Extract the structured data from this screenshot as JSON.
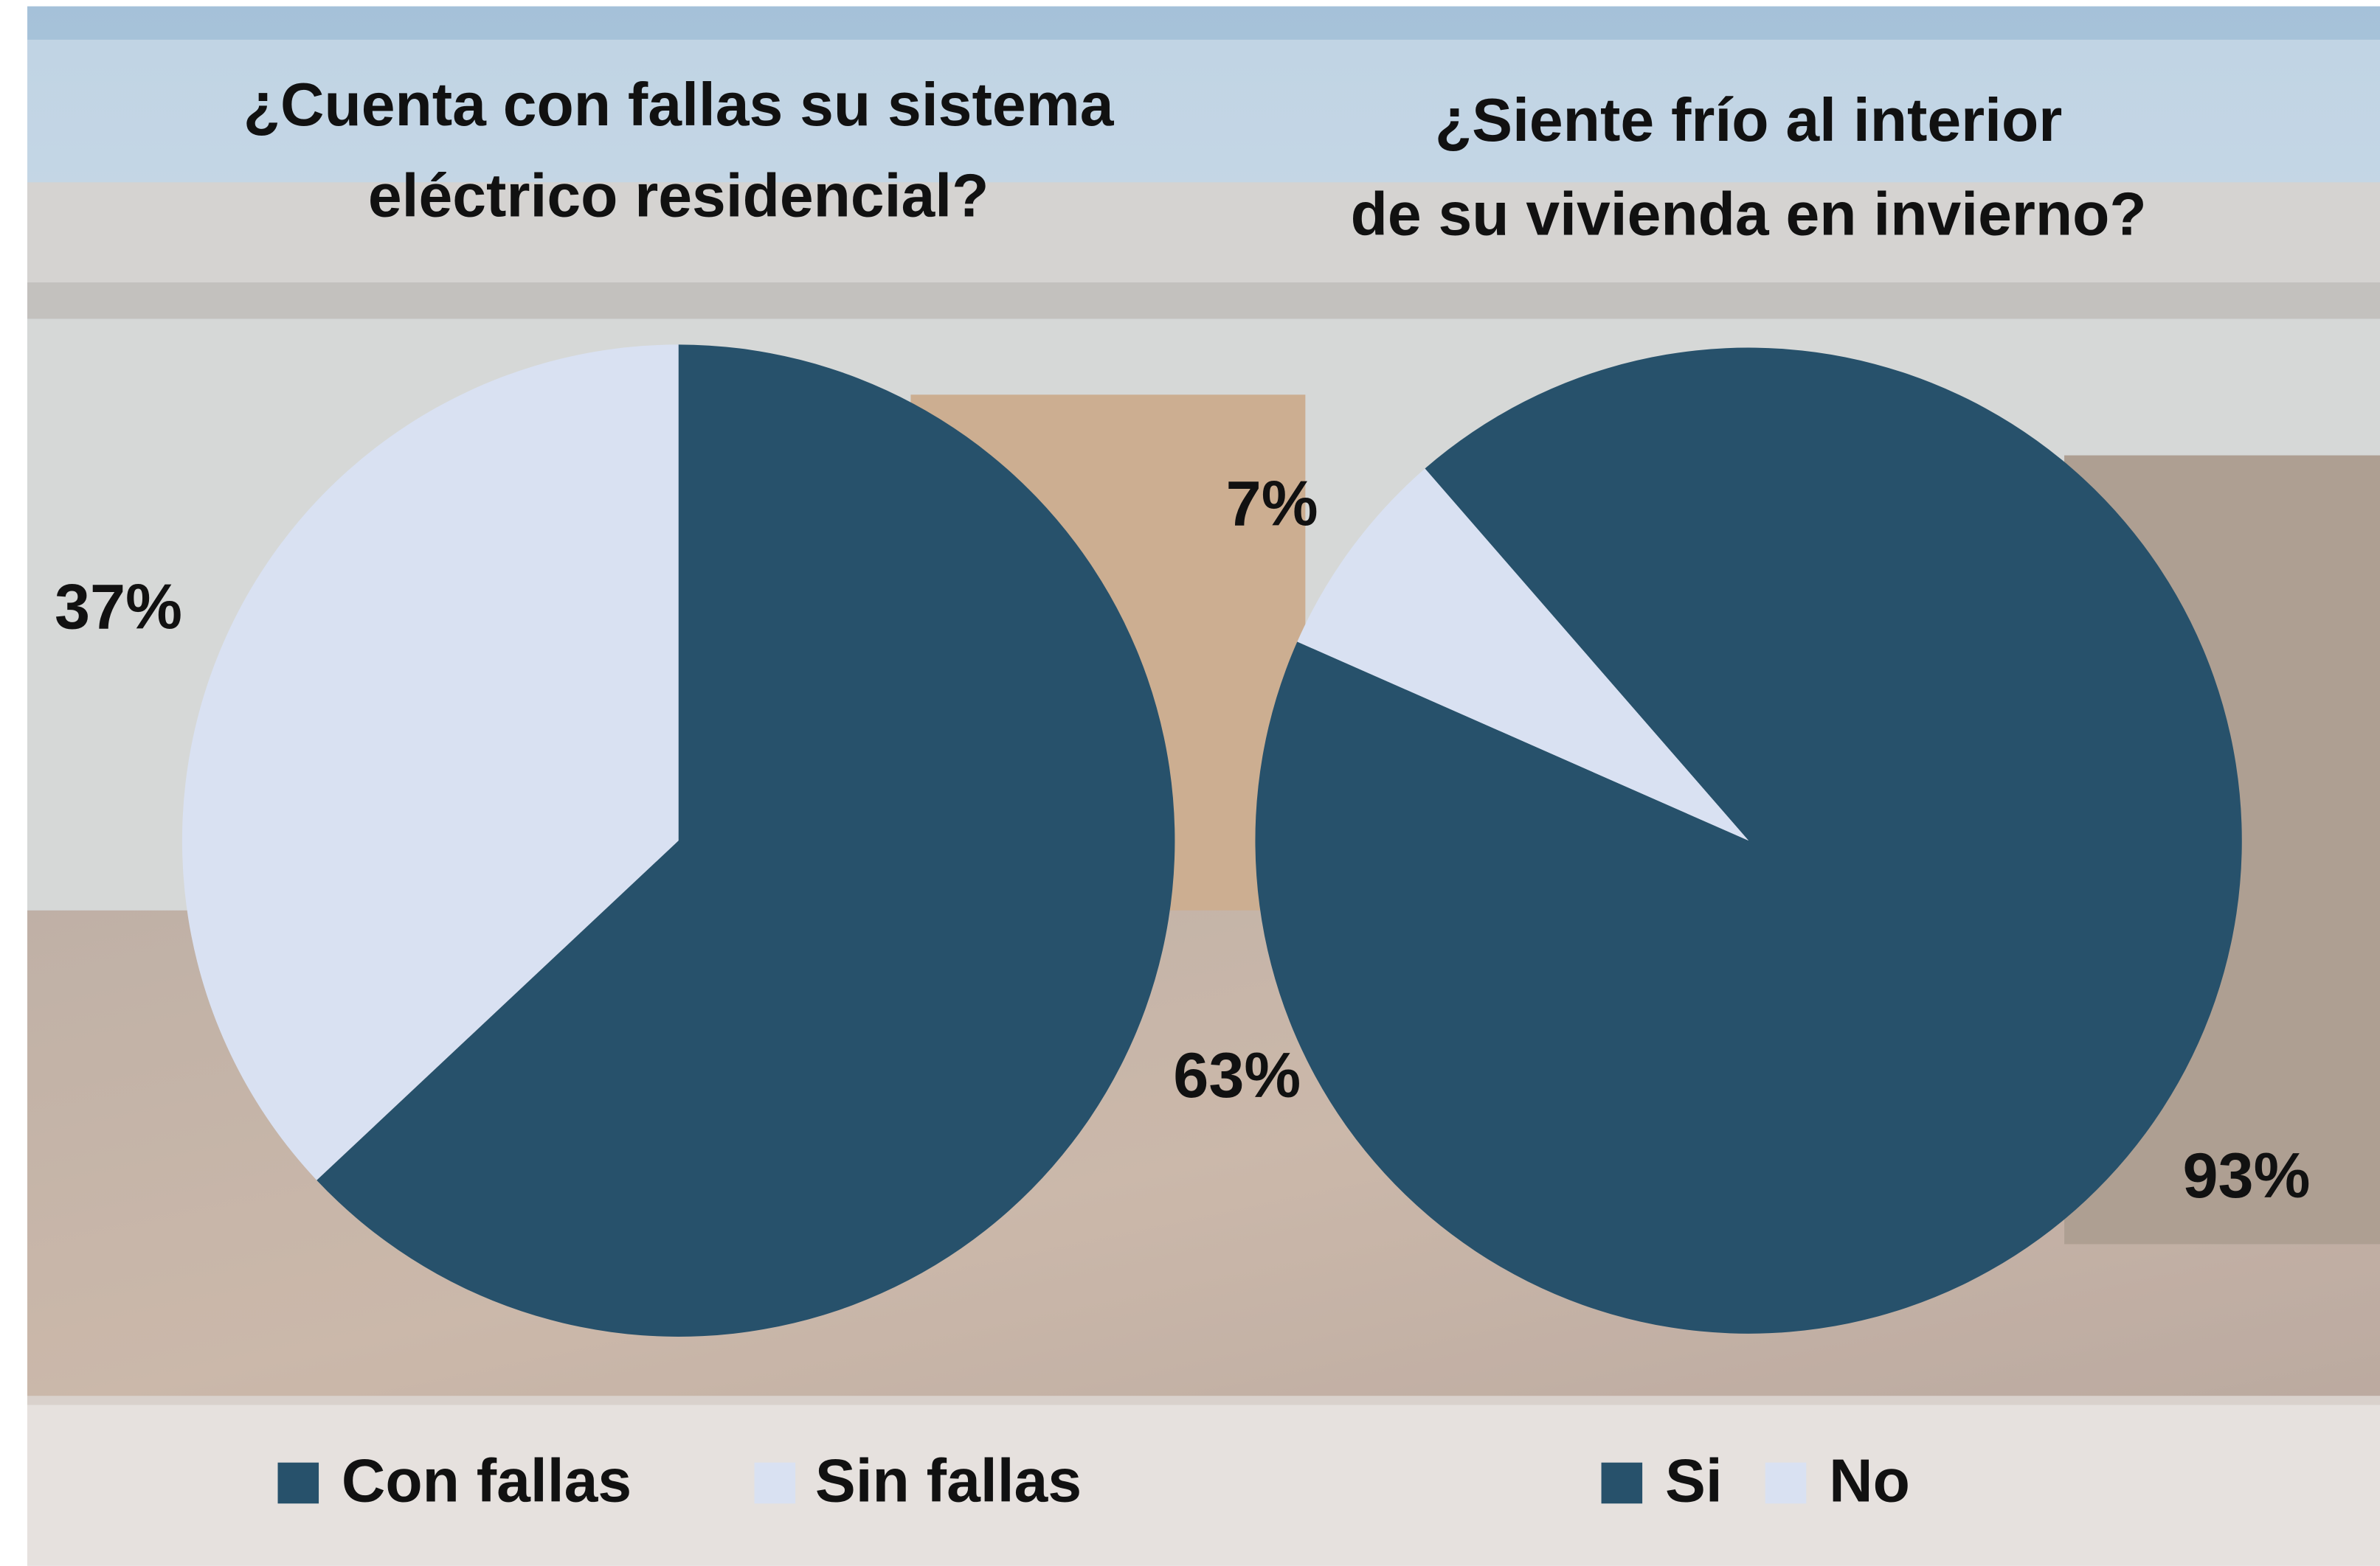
{
  "chart_data": [
    {
      "type": "pie",
      "title": [
        "¿Cuenta con fallas su sistema",
        "eléctrico residencial?"
      ],
      "categories": [
        "Con fallas",
        "Sin fallas"
      ],
      "values": [
        63,
        37
      ],
      "value_labels": [
        "63%",
        "37%"
      ],
      "colors": [
        "#27516b",
        "#d9e1f2"
      ],
      "legend": "bottom"
    },
    {
      "type": "pie",
      "title": [
        "¿Siente frío al interior",
        "de su vivienda en invierno?"
      ],
      "categories": [
        "Si",
        "No"
      ],
      "values": [
        93,
        7
      ],
      "value_labels": [
        "93%",
        "7%"
      ],
      "colors": [
        "#27516b",
        "#d9e1f2"
      ],
      "legend": "bottom"
    }
  ]
}
